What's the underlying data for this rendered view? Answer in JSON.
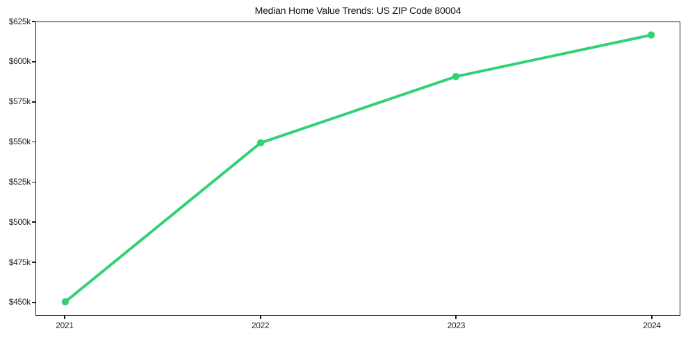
{
  "chart_data": {
    "type": "line",
    "title": "Median Home Value Trends: US ZIP Code 80004",
    "series": [
      {
        "name": "Median Home Value",
        "x": [
          "2021",
          "2022",
          "2023",
          "2024"
        ],
        "values": [
          450000,
          549500,
          591000,
          617000
        ]
      }
    ],
    "xtick_labels": [
      "2021",
      "2022",
      "2023",
      "2024"
    ],
    "yticks": [
      450000,
      475000,
      500000,
      525000,
      550000,
      575000,
      600000,
      625000
    ],
    "ytick_labels": [
      "$450k",
      "$475k",
      "$500k",
      "$525k",
      "$550k",
      "$575k",
      "$600k",
      "$625k"
    ],
    "ylim": [
      441750,
      625000
    ],
    "xlabel": "",
    "ylabel": "",
    "grid": false,
    "legend_position": "none",
    "line_color": "#33d176",
    "marker": "circle",
    "axis_color": "#1c1c1c",
    "text_color": "#262626",
    "background_color": "#ffffff"
  }
}
